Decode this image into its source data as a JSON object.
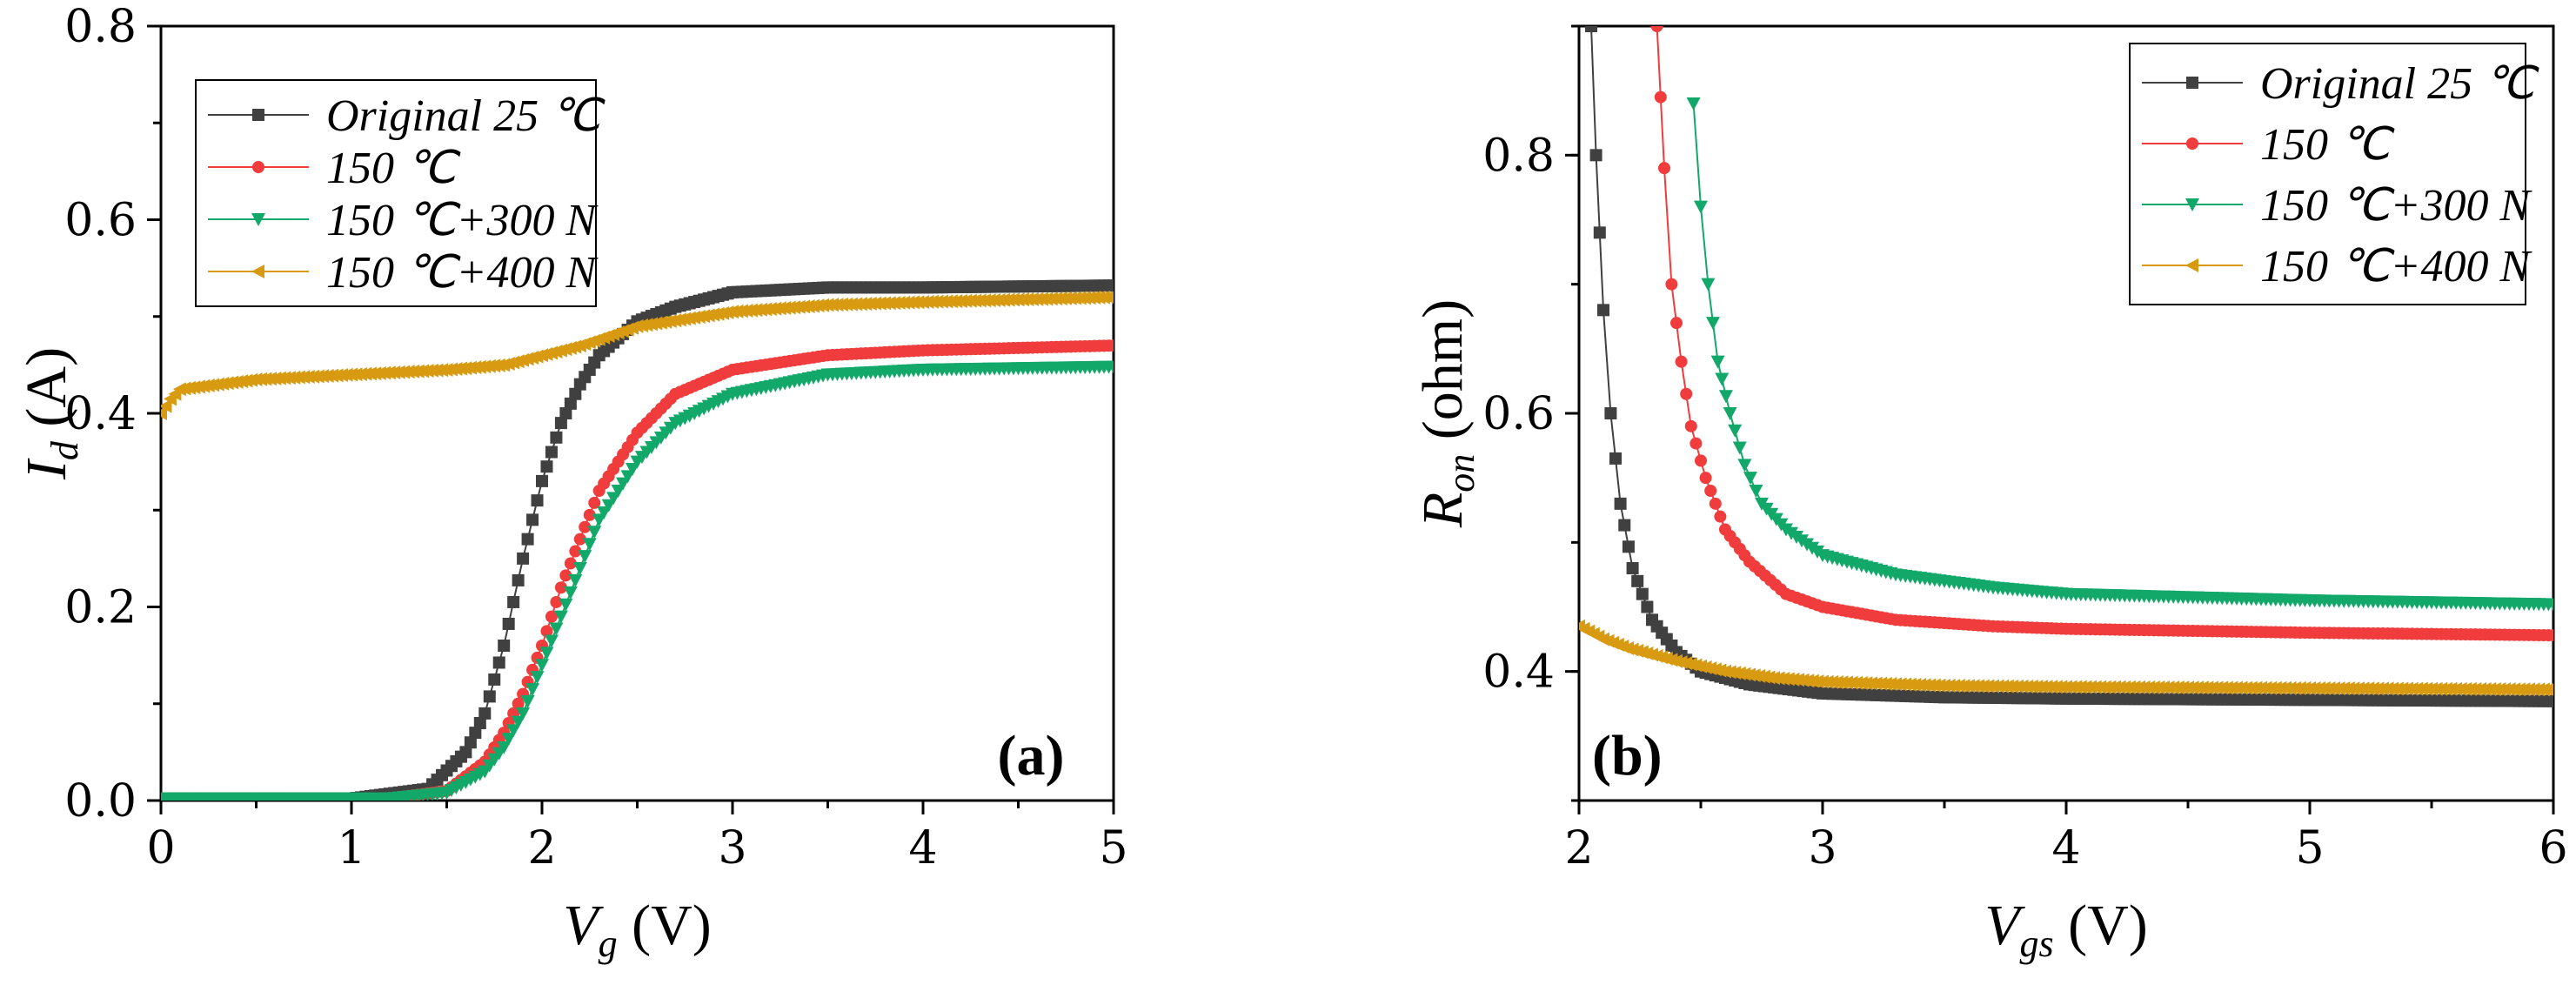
{
  "chart_data": [
    {
      "type": "line",
      "panel_label": "(a)",
      "xlabel": {
        "main": "V",
        "sub": "g",
        "unit": " (V)"
      },
      "ylabel": {
        "main": "I",
        "sub": "d",
        "unit": " (A)"
      },
      "xlim": [
        0,
        5
      ],
      "ylim": [
        0,
        0.8
      ],
      "xticks": [
        "0",
        "1",
        "2",
        "3",
        "4",
        "5"
      ],
      "yticks": [
        "0.0",
        "0.2",
        "0.4",
        "0.6",
        "0.8"
      ],
      "legend_position": "top-left",
      "series": [
        {
          "name": "Original 25 ℃",
          "color": "#404040",
          "marker": "square",
          "x": [
            0,
            1.0,
            1.4,
            1.6,
            1.7,
            1.8,
            1.9,
            2.0,
            2.1,
            2.2,
            2.3,
            2.5,
            2.7,
            3.0,
            3.5,
            4.0,
            5.0
          ],
          "y": [
            0.002,
            0.002,
            0.012,
            0.05,
            0.09,
            0.16,
            0.25,
            0.33,
            0.39,
            0.43,
            0.46,
            0.495,
            0.51,
            0.525,
            0.53,
            0.53,
            0.532
          ]
        },
        {
          "name": "150 ℃",
          "color": "#f03c3c",
          "marker": "circle",
          "x": [
            0,
            1.2,
            1.5,
            1.7,
            1.8,
            1.9,
            2.0,
            2.1,
            2.2,
            2.3,
            2.5,
            2.7,
            3.0,
            3.5,
            4.0,
            5.0
          ],
          "y": [
            0.002,
            0.002,
            0.01,
            0.04,
            0.07,
            0.11,
            0.16,
            0.22,
            0.27,
            0.32,
            0.38,
            0.42,
            0.445,
            0.46,
            0.465,
            0.47
          ]
        },
        {
          "name": "150 ℃+300 N",
          "color": "#12a86a",
          "marker": "triangle-down",
          "x": [
            0,
            1.2,
            1.5,
            1.7,
            1.8,
            1.9,
            2.0,
            2.1,
            2.2,
            2.3,
            2.5,
            2.7,
            3.0,
            3.5,
            4.0,
            5.0
          ],
          "y": [
            0.002,
            0.002,
            0.008,
            0.03,
            0.055,
            0.09,
            0.14,
            0.19,
            0.24,
            0.29,
            0.35,
            0.39,
            0.42,
            0.44,
            0.445,
            0.448
          ]
        },
        {
          "name": "150 ℃+400 N",
          "color": "#d89a10",
          "marker": "triangle-left",
          "x": [
            0,
            0.05,
            0.1,
            0.3,
            0.5,
            1.0,
            1.5,
            1.8,
            2.0,
            2.2,
            2.5,
            3.0,
            3.5,
            4.0,
            5.0
          ],
          "y": [
            0.4,
            0.415,
            0.425,
            0.43,
            0.435,
            0.44,
            0.445,
            0.45,
            0.46,
            0.47,
            0.49,
            0.505,
            0.512,
            0.515,
            0.52
          ]
        }
      ]
    },
    {
      "type": "line",
      "panel_label": "(b)",
      "xlabel": {
        "main": "V",
        "sub": "gs",
        "unit": " (V)"
      },
      "ylabel": {
        "main": "R",
        "sub": "on",
        "unit": " (ohm)"
      },
      "xlim": [
        2,
        6
      ],
      "ylim": [
        0.3,
        0.9
      ],
      "xticks": [
        "2",
        "3",
        "4",
        "5",
        "6"
      ],
      "yticks": [
        "0.4",
        "0.6",
        "0.8"
      ],
      "legend_position": "top-right",
      "series": [
        {
          "name": "Original 25 ℃",
          "color": "#404040",
          "marker": "square",
          "x": [
            2.05,
            2.07,
            2.1,
            2.13,
            2.17,
            2.22,
            2.3,
            2.4,
            2.5,
            2.7,
            3.0,
            3.5,
            4.0,
            5.0,
            6.0
          ],
          "y": [
            0.9,
            0.8,
            0.68,
            0.6,
            0.53,
            0.48,
            0.44,
            0.415,
            0.4,
            0.39,
            0.383,
            0.38,
            0.379,
            0.378,
            0.377
          ]
        },
        {
          "name": "150 ℃",
          "color": "#f03c3c",
          "marker": "circle",
          "x": [
            2.32,
            2.35,
            2.38,
            2.42,
            2.46,
            2.52,
            2.6,
            2.7,
            2.85,
            3.0,
            3.3,
            3.7,
            4.0,
            5.0,
            6.0
          ],
          "y": [
            0.9,
            0.79,
            0.7,
            0.64,
            0.59,
            0.55,
            0.51,
            0.485,
            0.46,
            0.45,
            0.44,
            0.435,
            0.433,
            0.43,
            0.428
          ]
        },
        {
          "name": "150 ℃+300 N",
          "color": "#12a86a",
          "marker": "triangle-down",
          "x": [
            2.47,
            2.5,
            2.53,
            2.57,
            2.62,
            2.68,
            2.75,
            2.85,
            3.0,
            3.3,
            3.7,
            4.0,
            5.0,
            6.0
          ],
          "y": [
            0.84,
            0.76,
            0.7,
            0.64,
            0.6,
            0.56,
            0.53,
            0.51,
            0.49,
            0.475,
            0.465,
            0.46,
            0.455,
            0.452
          ]
        },
        {
          "name": "150 ℃+400 N",
          "color": "#d89a10",
          "marker": "triangle-left",
          "x": [
            2.0,
            2.1,
            2.2,
            2.4,
            2.6,
            2.8,
            3.0,
            3.5,
            4.0,
            5.0,
            6.0
          ],
          "y": [
            0.435,
            0.425,
            0.418,
            0.408,
            0.4,
            0.395,
            0.392,
            0.389,
            0.388,
            0.387,
            0.386
          ]
        }
      ]
    }
  ]
}
